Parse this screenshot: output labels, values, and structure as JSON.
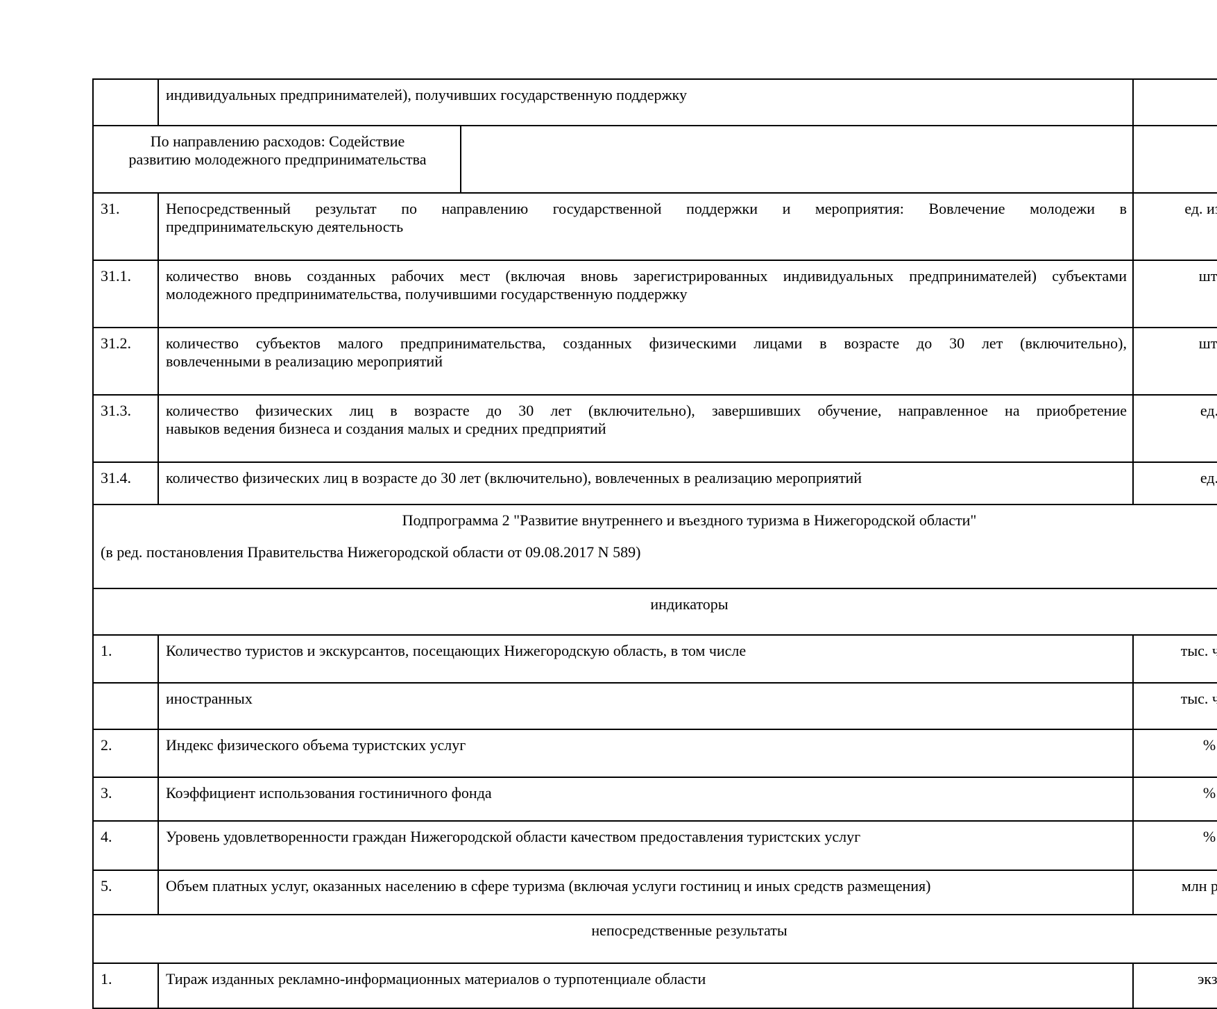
{
  "document": {
    "background_color": "#ffffff",
    "text_color": "#000000",
    "border_color": "#000000",
    "language": "ru"
  },
  "sections": {
    "indicators": "индикаторы",
    "results": "непосредственные результаты"
  },
  "subprogram": {
    "title": "Подпрограмма 2 \"Развитие внутреннего и въездного туризма в Нижегородской области\"",
    "amendment": "(в ред. постановления Правительства Нижегородской области от 09.08.2017 N 589)"
  },
  "rows": {
    "continuation": {
      "num": "",
      "text": "индивидуальных предпринимателей), получивших государственную поддержку",
      "unit": ""
    },
    "direction": {
      "label_lines": [
        "По направлению расходов: Содействие",
        "развитию молодежного предпринимательства"
      ]
    },
    "r31": {
      "num": "31.",
      "text_lines": [
        "Непосредственный результат по направлению государственной поддержки и мероприятия: Вовлечение молодежи в",
        "предпринимательскую деятельность"
      ],
      "unit": "ед. изм."
    },
    "r31_1": {
      "num": "31.1.",
      "text_lines": [
        "количество вновь созданных рабочих мест (включая вновь зарегистрированных индивидуальных предпринимателей) субъектами",
        "молодежного предпринимательства, получившими государственную поддержку"
      ],
      "unit": "шт."
    },
    "r31_2": {
      "num": "31.2.",
      "text_lines": [
        "количество субъектов малого предпринимательства, созданных физическими лицами в возрасте до 30 лет (включительно),",
        "вовлеченными в реализацию мероприятий"
      ],
      "unit": "шт."
    },
    "r31_3": {
      "num": "31.3.",
      "text_lines": [
        "количество физических лиц в возрасте до 30 лет (включительно), завершивших обучение, направленное на приобретение",
        "навыков ведения бизнеса и создания малых и средних предприятий"
      ],
      "unit": "ед."
    },
    "r31_4": {
      "num": "31.4.",
      "text": "количество физических лиц в возрасте до 30 лет (включительно), вовлеченных в реализацию мероприятий",
      "unit": "ед."
    },
    "i1": {
      "num": "1.",
      "text": "Количество туристов и экскурсантов, посещающих Нижегородскую область, в том числе",
      "unit": "тыс. чел."
    },
    "i1a": {
      "num": "",
      "text": "иностранных",
      "unit": "тыс. чел."
    },
    "i2": {
      "num": "2.",
      "text": "Индекс физического объема туристских услуг",
      "unit": "%"
    },
    "i3": {
      "num": "3.",
      "text": "Коэффициент использования гостиничного фонда",
      "unit": "%"
    },
    "i4": {
      "num": "4.",
      "text": "Уровень удовлетворенности граждан Нижегородской области качеством предоставления туристских услуг",
      "unit": "%"
    },
    "i5": {
      "num": "5.",
      "text": "Объем платных услуг, оказанных населению в сфере туризма (включая услуги гостиниц и иных средств размещения)",
      "unit": "млн руб."
    },
    "res1": {
      "num": "1.",
      "text": "Тираж изданных рекламно-информационных материалов о турпотенциале области",
      "unit": "экз."
    }
  }
}
